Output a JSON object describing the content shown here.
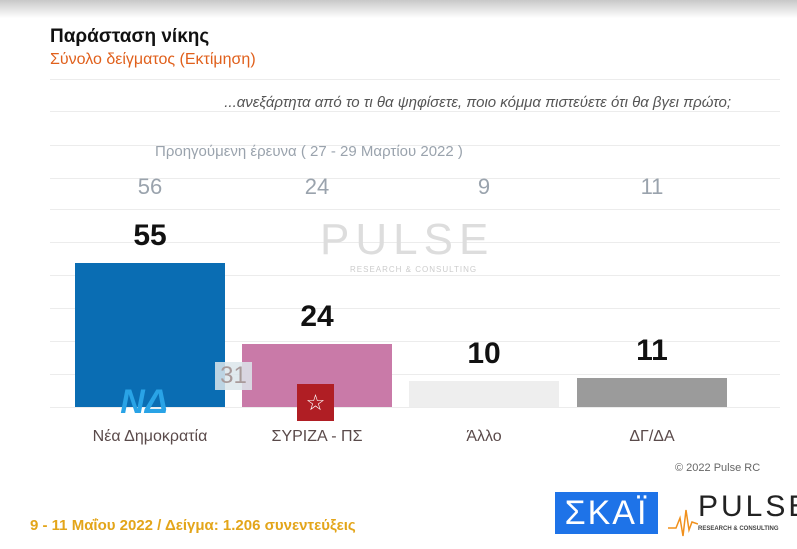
{
  "header": {
    "title": "Παράσταση νίκης",
    "subtitle": "Σύνολο δείγματος   (Εκτίμηση)"
  },
  "question": "...ανεξάρτητα από το τι θα ψηφίσετε, ποιο κόμμα πιστεύετε ότι θα βγει πρώτο;",
  "previous_label": "Προηγούμενη έρευνα  ( 27 - 29 Μαρτίου  2022 )",
  "overlay_value": "31",
  "watermark": {
    "main": "PULSE",
    "sub": "RESEARCH & CONSULTING"
  },
  "copyright": "© 2022 Pulse RC",
  "footer": "9 - 11  Μαΐου  2022  /  Δείγμα:  1.206 συνεντεύξεις",
  "logos": {
    "skai": "ΣΚΑΪ",
    "pulse": "PULSE",
    "pulse_sub": "RESEARCH & CONSULTING",
    "nd": "ΝΔ"
  },
  "chart_data": {
    "type": "bar",
    "title": "Παράσταση νίκης",
    "categories": [
      "Νέα Δημοκρατία",
      "ΣΥΡΙΖΑ - ΠΣ",
      "Άλλο",
      "ΔΓ/ΔΑ"
    ],
    "series": [
      {
        "name": "9 - 11 Μαΐου 2022",
        "values": [
          55,
          24,
          10,
          11
        ]
      },
      {
        "name": "Προηγούμενη έρευνα ( 27 - 29 Μαρτίου 2022 )",
        "values": [
          56,
          24,
          9,
          11
        ]
      }
    ],
    "colors": [
      "#0a6db3",
      "#c97aa8",
      "#eeeeee",
      "#9b9b9b"
    ],
    "ylim": [
      0,
      100
    ],
    "grid": true
  }
}
